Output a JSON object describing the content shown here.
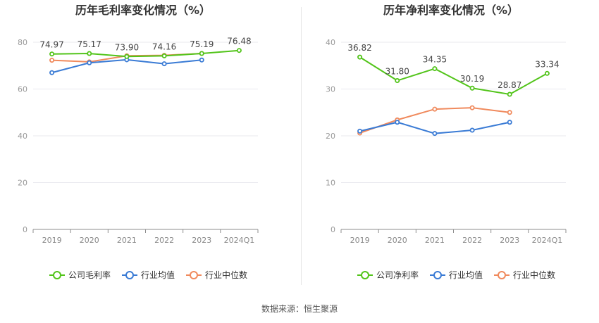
{
  "source": "数据来源：恒生聚源",
  "chart_data": [
    {
      "type": "line",
      "title": "历年毛利率变化情况（%）",
      "categories": [
        "2019",
        "2020",
        "2021",
        "2022",
        "2023",
        "2024Q1"
      ],
      "ylim": [
        0,
        80
      ],
      "yticks": [
        0,
        20,
        40,
        60,
        80
      ],
      "grid": true,
      "legend_position": "bottom",
      "series": [
        {
          "name": "公司毛利率",
          "color": "#52c41a",
          "labeled": true,
          "values": [
            74.97,
            75.17,
            73.9,
            74.16,
            75.19,
            76.48
          ],
          "labels": [
            "74.97",
            "75.17",
            "73.90",
            "74.16",
            "75.19",
            "76.48"
          ]
        },
        {
          "name": "行业均值",
          "color": "#3a7bd5",
          "labeled": false,
          "values": [
            67.0,
            71.2,
            72.5,
            70.8,
            72.4,
            null
          ]
        },
        {
          "name": "行业中位数",
          "color": "#f08a5d",
          "labeled": false,
          "values": [
            72.3,
            71.6,
            74.2,
            74.4,
            75.2,
            null
          ]
        }
      ]
    },
    {
      "type": "line",
      "title": "历年净利率变化情况（%）",
      "categories": [
        "2019",
        "2020",
        "2021",
        "2022",
        "2023",
        "2024Q1"
      ],
      "ylim": [
        0,
        40
      ],
      "yticks": [
        0,
        10,
        20,
        30,
        40
      ],
      "grid": true,
      "legend_position": "bottom",
      "series": [
        {
          "name": "公司净利率",
          "color": "#52c41a",
          "labeled": true,
          "values": [
            36.82,
            31.8,
            34.35,
            30.19,
            28.87,
            33.34
          ],
          "labels": [
            "36.82",
            "31.80",
            "34.35",
            "30.19",
            "28.87",
            "33.34"
          ]
        },
        {
          "name": "行业均值",
          "color": "#3a7bd5",
          "labeled": false,
          "values": [
            21.0,
            22.9,
            20.5,
            21.2,
            22.9,
            null
          ]
        },
        {
          "name": "行业中位数",
          "color": "#f08a5d",
          "labeled": false,
          "values": [
            20.6,
            23.4,
            25.7,
            26.0,
            25.0,
            null
          ]
        }
      ]
    }
  ]
}
